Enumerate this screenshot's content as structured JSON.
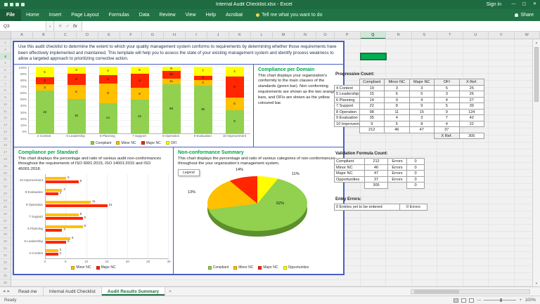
{
  "window": {
    "title": "Internal Audit Checklist.xlsx - Excel",
    "sign_in_label": "Sign in",
    "share_label": "Share"
  },
  "icons": {
    "minimize": "—",
    "maximize": "▢",
    "close": "✕",
    "dropdown": "▼",
    "cancel": "✕",
    "check": "✓",
    "fx": "fx",
    "nav_left": "◀",
    "nav_right": "▶",
    "add_sheet": "+",
    "scroll_up": "▲",
    "scroll_down": "▼",
    "zoom_out": "—",
    "zoom_in": "+"
  },
  "ribbon": {
    "tabs": [
      "File",
      "Home",
      "Insert",
      "Page Layout",
      "Formulas",
      "Data",
      "Review",
      "View",
      "Help",
      "Acrobat"
    ],
    "tell_me": "Tell me what you want to do"
  },
  "formula_bar": {
    "name_box": "Q3",
    "formula": ""
  },
  "sheet": {
    "selected_cell": "Q3",
    "selected_column": "Q",
    "selected_row": 3
  },
  "column_headers": [
    "A",
    "B",
    "C",
    "D",
    "E",
    "F",
    "G",
    "H",
    "I",
    "J",
    "K",
    "L",
    "M",
    "N",
    "O",
    "P",
    "Q",
    "R",
    "S",
    "T",
    "U",
    "V",
    "W"
  ],
  "colors": {
    "excel_green": "#217346",
    "compliant_green": "#92d050",
    "minor_orange": "#ffc000",
    "major_red": "#ff2600",
    "ofi_yellow": "#ffff00",
    "dashboard_border_blue": "#4a5fc1",
    "heading_green": "#00a550"
  },
  "dashboard": {
    "intro": "Use this audit checklist to determine the extent to which your quality management system conforms to requirements by determining whether those requirements have been effectively implemented and maintained. This template will help you to assess the state of your existing management system and identify process weakness to allow a targeted approach to prioritizing corrective action.",
    "domain_section": {
      "heading": "Compliance per Domain",
      "description": "This chart displays your organization's conformity to the main clauses of the standards (green bar). Non conforming requirements are shown as the two orange bars, and OFIs are shown as the yellow coloured bar."
    },
    "standard_section": {
      "heading": "Compliance per Standard",
      "description": "This chart displays the percentage and ratio of various audit non-conformances throughout the requirements of ISO 9001:2015, ISO 14001:2015 and ISO 45001:2018."
    },
    "summary_section": {
      "heading": "Non-conformance Summary",
      "description": "This chart displays the percentage and ratio of various categories of non-conformances throughout the your organization's management system.",
      "legend_box_label": "Legend"
    }
  },
  "chart_data": [
    {
      "type": "bar",
      "subtype": "stacked-100-column",
      "title": "Compliance per Domain",
      "categories": [
        "4 Context",
        "5 Leadership",
        "6 Planning",
        "7 Support",
        "8 Operation",
        "9 Evaluation",
        "10 Improvement"
      ],
      "series": [
        {
          "name": "Compliant",
          "color": "#92d050",
          "values": [
            19,
            15,
            14,
            22,
            98,
            35,
            9
          ]
        },
        {
          "name": "Minor NC",
          "color": "#ffc000",
          "values": [
            3,
            6,
            9,
            8,
            11,
            4,
            5
          ]
        },
        {
          "name": "Major NC",
          "color": "#ff2600",
          "values": [
            3,
            5,
            4,
            9,
            15,
            3,
            8
          ]
        },
        {
          "name": "OFI",
          "color": "#ffff00",
          "values": [
            5,
            3,
            4,
            5,
            9,
            7,
            4
          ]
        }
      ],
      "y_ticks": [
        "100%",
        "90%",
        "80%",
        "70%",
        "60%",
        "50%",
        "40%",
        "30%",
        "20%",
        "10%",
        "0%"
      ],
      "ylim": [
        0,
        100
      ],
      "grid": true,
      "legend_position": "bottom"
    },
    {
      "type": "bar",
      "subtype": "horizontal-clustered",
      "title": "Compliance per Standard",
      "categories": [
        "10 Improvement",
        "9 Evaluation",
        "8 Operation",
        "7 Support",
        "6 Planning",
        "5 Leadership",
        "4 Context"
      ],
      "series": [
        {
          "name": "Minor NC",
          "color": "#ffc000",
          "values": [
            5,
            4,
            11,
            8,
            9,
            6,
            3
          ]
        },
        {
          "name": "Major NC",
          "color": "#ff2600",
          "values": [
            8,
            3,
            15,
            9,
            4,
            5,
            3
          ]
        }
      ],
      "x_ticks": [
        0,
        5,
        10,
        15,
        20,
        25,
        30
      ],
      "xlim": [
        0,
        30
      ],
      "grid": true,
      "legend_position": "bottom"
    },
    {
      "type": "pie",
      "title": "Non-conformance Summary",
      "labels": [
        "Compliant",
        "Minor NC",
        "Major NC",
        "Opportunities"
      ],
      "values": [
        62,
        13,
        14,
        11
      ],
      "display_labels": [
        "62%",
        "13%",
        "14%",
        "11%"
      ],
      "colors": [
        "#92d050",
        "#ffc000",
        "#ff2600",
        "#ffff00"
      ],
      "legend_position": "bottom"
    }
  ],
  "right_panel": {
    "progressive": {
      "title": "Progressive Count:",
      "col_headers": [
        "Compliant",
        "Minor NC",
        "Major NC",
        "OFI",
        "X Ref."
      ],
      "rows": [
        {
          "label": "4 Context",
          "values": [
            19,
            3,
            3,
            5,
            25
          ]
        },
        {
          "label": "5 Leadership",
          "values": [
            15,
            6,
            5,
            3,
            26
          ]
        },
        {
          "label": "6 Planning",
          "values": [
            14,
            9,
            4,
            4,
            27
          ]
        },
        {
          "label": "7 Support",
          "values": [
            22,
            8,
            9,
            5,
            39
          ]
        },
        {
          "label": "8 Operation",
          "values": [
            98,
            11,
            15,
            9,
            124
          ]
        },
        {
          "label": "9 Evaluation",
          "values": [
            35,
            4,
            3,
            7,
            42
          ]
        },
        {
          "label": "10 Improvement",
          "values": [
            9,
            5,
            8,
            4,
            22
          ]
        }
      ],
      "totals": [
        212,
        46,
        47,
        37
      ],
      "xref_label": "X Ref.",
      "xref_total": 305
    },
    "validation": {
      "title": "Validation Formula Count:",
      "rows": [
        {
          "label": "Compliant",
          "count": 212,
          "errors_label": "Errors",
          "errors": 0
        },
        {
          "label": "Minor NC",
          "count": 46,
          "errors_label": "Errors",
          "errors": 0
        },
        {
          "label": "Major NC",
          "count": 47,
          "errors_label": "Errors",
          "errors": 0
        },
        {
          "label": "Opportunities",
          "count": 37,
          "errors_label": "Errors",
          "errors": 0
        }
      ],
      "total_row": {
        "count": 305,
        "errors": 0
      }
    },
    "entry_errors": {
      "title": "Entry Errors:",
      "left": "0 Entries yet to be entered",
      "right": "0 Errors"
    }
  },
  "sheet_tabs": [
    {
      "label": "Read-me",
      "active": false
    },
    {
      "label": "Internal Audit Checklist",
      "active": false
    },
    {
      "label": "Audit Results Summary",
      "active": true
    }
  ],
  "status_bar": {
    "ready": "Ready",
    "zoom": "100%"
  }
}
